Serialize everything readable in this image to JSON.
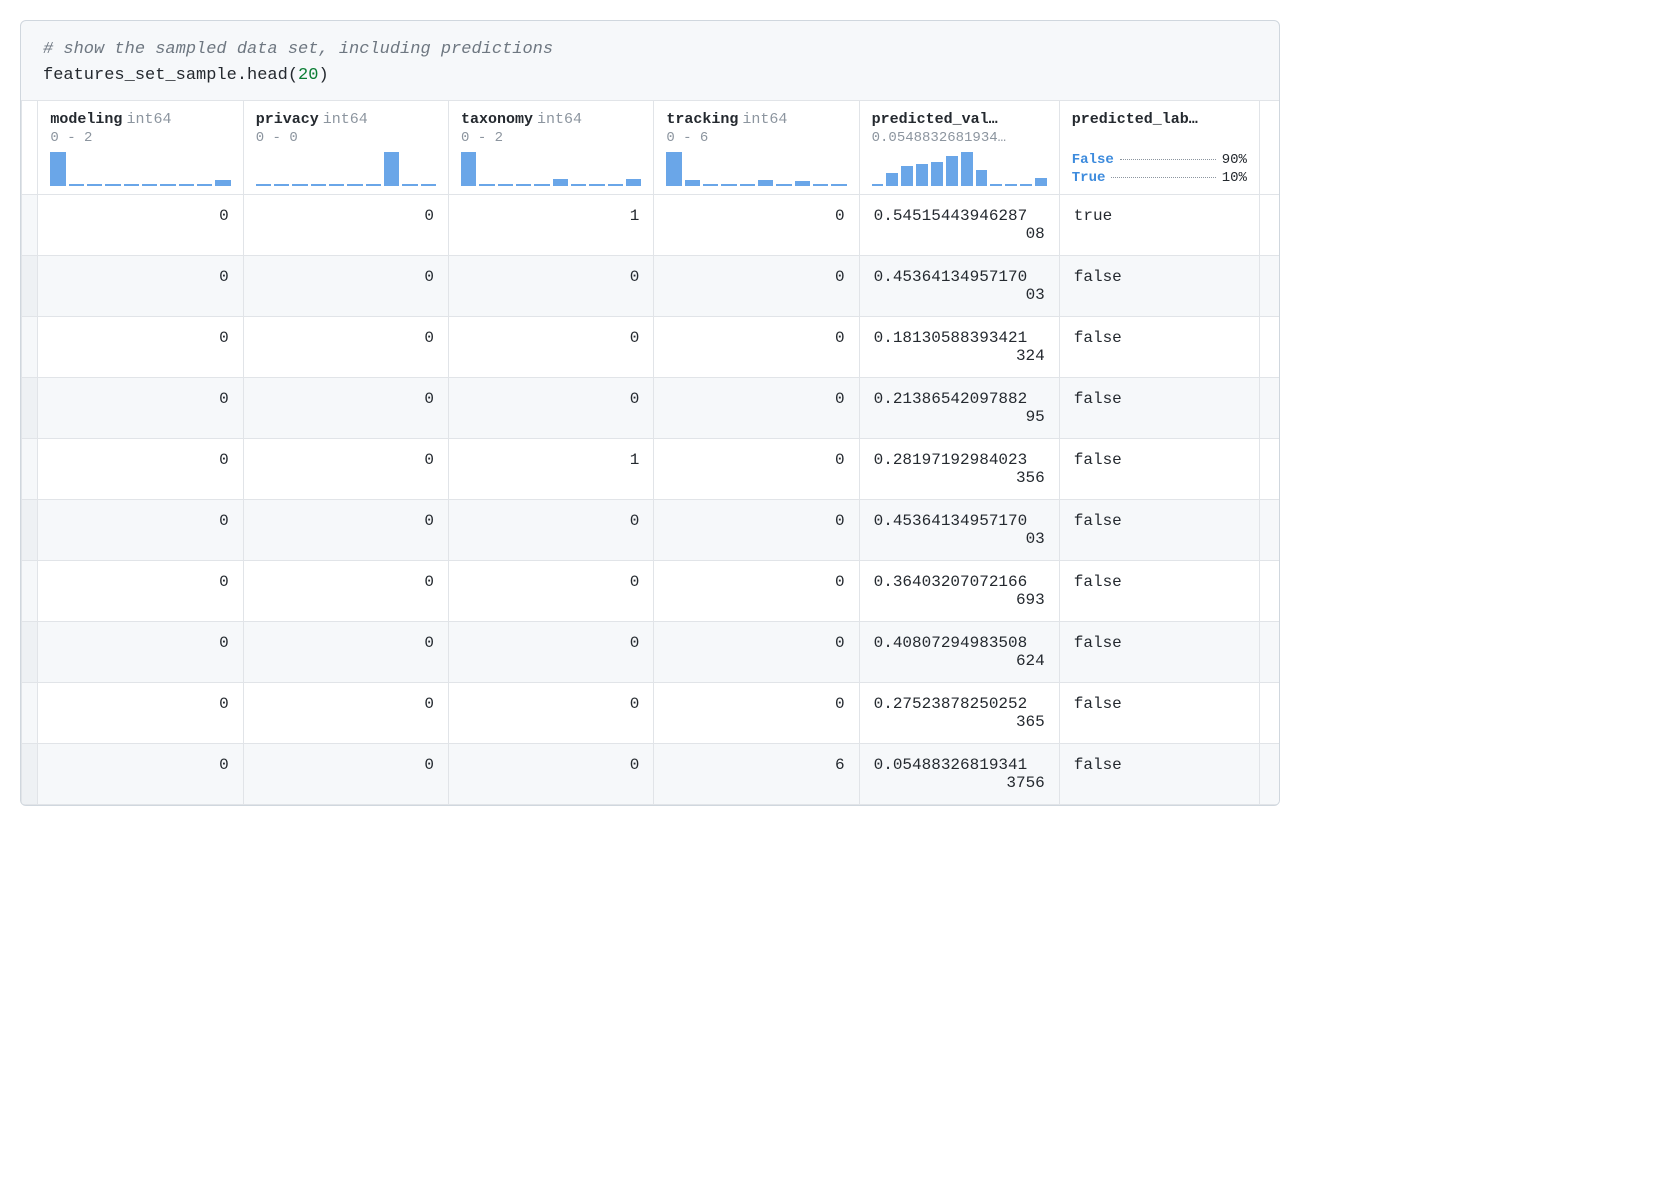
{
  "code": {
    "comment": "# show the sampled data set, including predictions",
    "line_prefix": "features_set_sample.head(",
    "arg": "20",
    "line_suffix": ")"
  },
  "colors": {
    "bar_color": "#6aa6e8",
    "border_color": "#e1e4e8",
    "header_muted": "#8c959f",
    "link_blue": "#3d8bdd",
    "code_comment": "#6e7781",
    "code_num": "#0a7d33",
    "bg_alt": "#f6f8fa"
  },
  "columns": [
    {
      "key": "modeling",
      "name": "modeling",
      "type": "int64",
      "range": "0 - 2",
      "align": "right",
      "spark": [
        100,
        4,
        4,
        4,
        4,
        4,
        4,
        4,
        4,
        18
      ]
    },
    {
      "key": "privacy",
      "name": "privacy",
      "type": "int64",
      "range": "0 - 0",
      "align": "right",
      "spark": [
        4,
        4,
        4,
        4,
        4,
        4,
        4,
        100,
        4,
        4
      ]
    },
    {
      "key": "taxonomy",
      "name": "taxonomy",
      "type": "int64",
      "range": "0 - 2",
      "align": "right",
      "spark": [
        100,
        4,
        4,
        4,
        4,
        22,
        4,
        4,
        4,
        20
      ]
    },
    {
      "key": "tracking",
      "name": "tracking",
      "type": "int64",
      "range": "0 - 6",
      "align": "right",
      "spark": [
        100,
        18,
        4,
        4,
        4,
        18,
        4,
        16,
        4,
        4
      ]
    },
    {
      "key": "predicted_val",
      "name": "predicted_val…",
      "type": "",
      "range": "0.0548832681934…",
      "align": "left",
      "spark": [
        6,
        38,
        58,
        66,
        72,
        88,
        100,
        48,
        6,
        6,
        6,
        24
      ]
    },
    {
      "key": "predicted_lab",
      "name": "predicted_lab…",
      "type": "",
      "range": "",
      "align": "left",
      "summary": [
        {
          "label": "False",
          "pct": "90%"
        },
        {
          "label": "True",
          "pct": "10%"
        }
      ]
    }
  ],
  "rows": [
    {
      "modeling": "0",
      "privacy": "0",
      "taxonomy": "1",
      "tracking": "0",
      "predicted_val": "0.5451544394628708",
      "predicted_lab": "true"
    },
    {
      "modeling": "0",
      "privacy": "0",
      "taxonomy": "0",
      "tracking": "0",
      "predicted_val": "0.4536413495717003",
      "predicted_lab": "false"
    },
    {
      "modeling": "0",
      "privacy": "0",
      "taxonomy": "0",
      "tracking": "0",
      "predicted_val": "0.18130588393421324",
      "predicted_lab": "false"
    },
    {
      "modeling": "0",
      "privacy": "0",
      "taxonomy": "0",
      "tracking": "0",
      "predicted_val": "0.2138654209788295",
      "predicted_lab": "false"
    },
    {
      "modeling": "0",
      "privacy": "0",
      "taxonomy": "1",
      "tracking": "0",
      "predicted_val": "0.28197192984023356",
      "predicted_lab": "false"
    },
    {
      "modeling": "0",
      "privacy": "0",
      "taxonomy": "0",
      "tracking": "0",
      "predicted_val": "0.4536413495717003",
      "predicted_lab": "false"
    },
    {
      "modeling": "0",
      "privacy": "0",
      "taxonomy": "0",
      "tracking": "0",
      "predicted_val": "0.36403207072166693",
      "predicted_lab": "false"
    },
    {
      "modeling": "0",
      "privacy": "0",
      "taxonomy": "0",
      "tracking": "0",
      "predicted_val": "0.40807294983508624",
      "predicted_lab": "false"
    },
    {
      "modeling": "0",
      "privacy": "0",
      "taxonomy": "0",
      "tracking": "0",
      "predicted_val": "0.27523878250252365",
      "predicted_lab": "false"
    },
    {
      "modeling": "0",
      "privacy": "0",
      "taxonomy": "0",
      "tracking": "6",
      "predicted_val": "0.054883268193413756",
      "predicted_lab": "false"
    }
  ]
}
